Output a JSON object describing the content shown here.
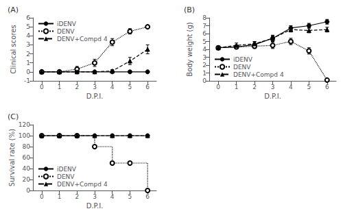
{
  "chart_data": [
    {
      "type": "line",
      "title": "(A)",
      "xlabel": "D.P.I.",
      "ylabel": "Clinical scores",
      "x": [
        0,
        1,
        2,
        3,
        4,
        5,
        6
      ],
      "xlim": [
        -0.5,
        6.5
      ],
      "xticks": [
        0,
        1,
        2,
        3,
        4,
        5,
        6
      ],
      "ylim": [
        -1,
        6
      ],
      "yticks": [
        -1,
        0,
        1,
        2,
        3,
        4,
        5,
        6
      ],
      "grid": false,
      "legend": "upper left",
      "series": [
        {
          "name": "iDENV",
          "color": "black",
          "marker": "filled circle",
          "line_style": "solid",
          "values": [
            0.0,
            0.0,
            0.0,
            0.0,
            0.0,
            0.0,
            0.0
          ],
          "errors": [
            0.0,
            0.0,
            0.0,
            0.0,
            0.0,
            0.0,
            0.0
          ]
        },
        {
          "name": "DENV",
          "color": "black",
          "marker": "open circle",
          "line_style": "dotted",
          "values": [
            0.0,
            0.0,
            0.3,
            1.0,
            3.3,
            4.5,
            5.0
          ],
          "errors": [
            0.0,
            0.0,
            0.3,
            0.4,
            0.4,
            0.3,
            0.0
          ]
        },
        {
          "name": "DENV+Compd 4",
          "color": "black",
          "marker": "filled triangle",
          "line_style": "dashed",
          "values": [
            0.0,
            0.0,
            0.0,
            0.0,
            0.1,
            1.2,
            2.5
          ],
          "errors": [
            0.0,
            0.0,
            0.0,
            0.0,
            0.15,
            0.4,
            0.5
          ]
        }
      ]
    },
    {
      "type": "line",
      "title": "(B)",
      "xlabel": "D.P.I.",
      "ylabel": "Body weight (g)",
      "x": [
        0,
        1,
        2,
        3,
        4,
        5,
        6
      ],
      "xlim": [
        -0.5,
        6.5
      ],
      "xticks": [
        0,
        1,
        2,
        3,
        4,
        5,
        6
      ],
      "ylim": [
        0,
        8
      ],
      "yticks": [
        0,
        1,
        2,
        3,
        4,
        5,
        6,
        7,
        8
      ],
      "grid": false,
      "legend": "lower left",
      "series": [
        {
          "name": "iDENV",
          "color": "black",
          "marker": "filled circle",
          "line_style": "solid",
          "values": [
            4.2,
            4.3,
            4.6,
            5.4,
            6.7,
            7.0,
            7.5
          ],
          "errors": [
            0.2,
            0.2,
            0.3,
            0.3,
            0.3,
            0.3,
            0.3
          ]
        },
        {
          "name": "DENV",
          "color": "black",
          "marker": "open circle",
          "line_style": "dotted",
          "values": [
            4.2,
            4.3,
            4.4,
            4.5,
            5.0,
            3.8,
            0.1
          ],
          "errors": [
            0.2,
            0.2,
            0.3,
            0.4,
            0.4,
            0.4,
            0.1
          ]
        },
        {
          "name": "DENV+Compd 4",
          "color": "black",
          "marker": "filled triangle",
          "line_style": "dashed",
          "values": [
            4.2,
            4.5,
            4.7,
            5.4,
            6.5,
            6.4,
            6.5
          ],
          "errors": [
            0.2,
            0.3,
            0.3,
            0.4,
            0.3,
            0.3,
            0.3
          ]
        }
      ]
    },
    {
      "type": "line",
      "title": "(C)",
      "xlabel": "D.P.I.",
      "ylabel": "Survival rate (%)",
      "x": [
        0,
        1,
        2,
        3,
        4,
        5,
        6
      ],
      "xlim": [
        -0.5,
        6.5
      ],
      "xticks": [
        0,
        1,
        2,
        3,
        4,
        5,
        6
      ],
      "ylim": [
        0,
        120
      ],
      "yticks": [
        0,
        20,
        40,
        60,
        80,
        100,
        120
      ],
      "grid": false,
      "legend": "lower left",
      "series": [
        {
          "name": "iDENV",
          "type": "line",
          "color": "black",
          "marker": "filled circle",
          "line_style": "solid",
          "values": [
            100,
            100,
            100,
            100,
            100,
            100,
            100
          ]
        },
        {
          "name": "DENV",
          "type": "step",
          "color": "black",
          "marker": "open circle",
          "line_style": "dotted",
          "values": [
            100,
            100,
            100,
            80,
            50,
            50,
            0
          ]
        },
        {
          "name": "DENV+Compd 4",
          "type": "line",
          "color": "black",
          "marker": "filled triangle",
          "line_style": "dashed",
          "values": [
            100,
            100,
            100,
            100,
            100,
            100,
            100
          ]
        }
      ]
    }
  ]
}
